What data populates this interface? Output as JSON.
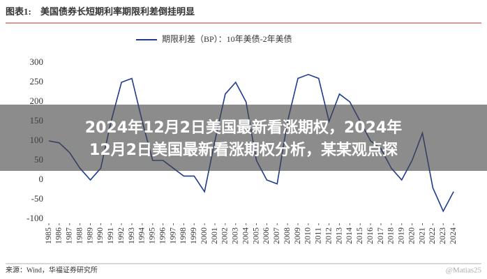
{
  "chart_data": {
    "type": "line",
    "figure_label": "图表1:",
    "title": "美国债券长短期利率期限利差倒挂明显",
    "source": "来源：Wind，华福证券研究所",
    "x": [
      1985,
      1986,
      1987,
      1988,
      1989,
      1990,
      1991,
      1992,
      1993,
      1994,
      1995,
      1996,
      1997,
      1998,
      1999,
      2000,
      2001,
      2002,
      2003,
      2004,
      2005,
      2006,
      2007,
      2008,
      2009,
      2010,
      2011,
      2012,
      2013,
      2014,
      2015,
      2016,
      2017,
      2018,
      2019,
      2020,
      2021,
      2022,
      2023,
      2024
    ],
    "series": [
      {
        "name": "期限利差（BP）：10年美债-2年美债",
        "color": "#1f3a8f",
        "values": [
          100,
          95,
          70,
          30,
          0,
          30,
          150,
          250,
          260,
          150,
          50,
          50,
          30,
          10,
          10,
          -30,
          100,
          220,
          250,
          200,
          50,
          0,
          -10,
          150,
          260,
          270,
          260,
          150,
          220,
          200,
          150,
          100,
          80,
          30,
          0,
          50,
          120,
          -20,
          -80,
          -30
        ]
      }
    ],
    "xlim": [
      1985,
      2025
    ],
    "xticks": [
      1985,
      1986,
      1987,
      1988,
      1989,
      1990,
      1991,
      1992,
      1993,
      1994,
      1995,
      1996,
      1997,
      1998,
      1999,
      2000,
      2001,
      2002,
      2003,
      2004,
      2005,
      2006,
      2007,
      2008,
      2009,
      2010,
      2011,
      2012,
      2013,
      2014,
      2015,
      2016,
      2017,
      2018,
      2019,
      2020,
      2021,
      2022,
      2023,
      2024
    ],
    "ylim": [
      -100,
      300
    ],
    "yticks": [
      -100,
      -50,
      0,
      50,
      100,
      150,
      200,
      250,
      300
    ],
    "grid": false
  },
  "banner": {
    "lines": [
      "2024年12月2日美国最新看涨期权，2024年",
      "12月2日美国最新看涨期权分析，某某观点探"
    ]
  },
  "watermark": "@Matias25"
}
